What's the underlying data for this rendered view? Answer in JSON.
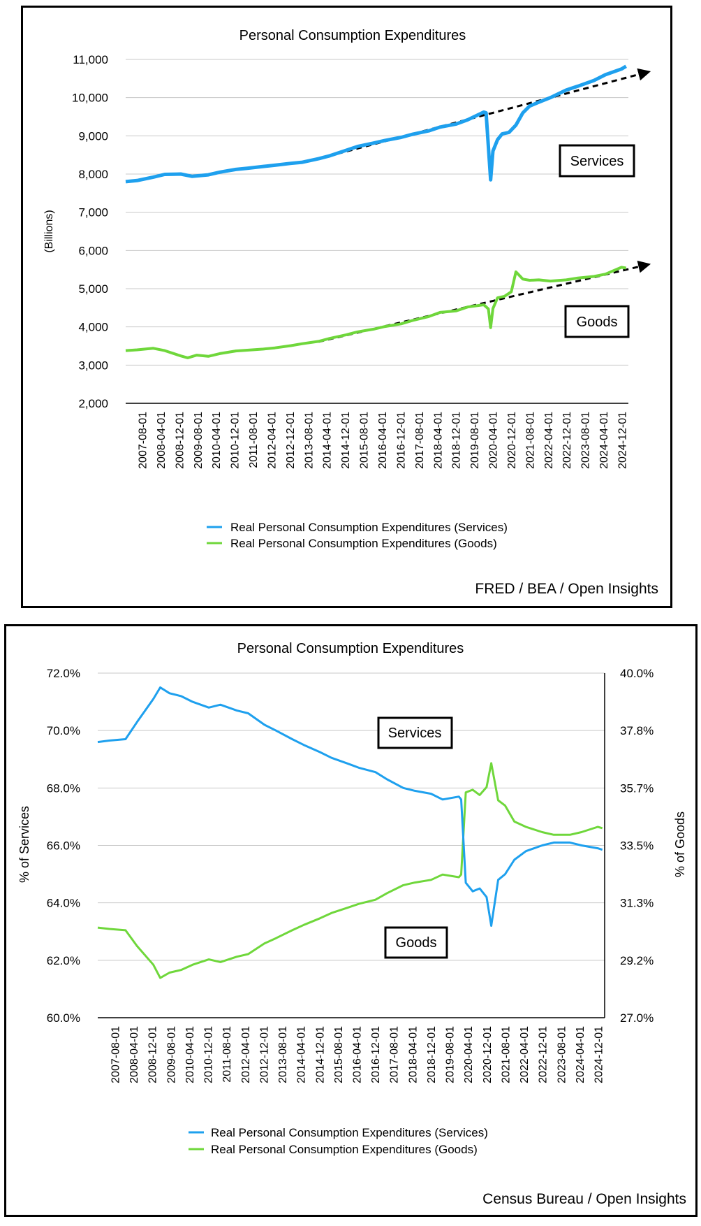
{
  "charts": [
    {
      "title": "Personal Consumption Expenditures",
      "ylabel": "(Billions)",
      "y_ticks": [
        "11,000",
        "10,000",
        "9,000",
        "8,000",
        "7,000",
        "6,000",
        "5,000",
        "4,000",
        "3,000",
        "2,000"
      ],
      "x_ticks": [
        "2007-08-01",
        "2008-04-01",
        "2008-12-01",
        "2009-08-01",
        "2010-04-01",
        "2010-12-01",
        "2011-08-01",
        "2012-04-01",
        "2012-12-01",
        "2013-08-01",
        "2014-04-01",
        "2014-12-01",
        "2015-08-01",
        "2016-04-01",
        "2016-12-01",
        "2017-08-01",
        "2018-04-01",
        "2018-12-01",
        "2019-08-01",
        "2020-04-01",
        "2020-12-01",
        "2021-08-01",
        "2022-04-01",
        "2022-12-01",
        "2023-08-01",
        "2024-04-01",
        "2024-12-01"
      ],
      "legend": [
        "Real Personal Consumption Expenditures (Services)",
        "Real Personal Consumption Expenditures (Goods)"
      ],
      "annotations": {
        "services": "Services",
        "goods": "Goods"
      },
      "source": "FRED / BEA / Open Insights"
    },
    {
      "title": "Personal Consumption Expenditures",
      "ylabel_left": "% of Services",
      "ylabel_right": "% of Goods",
      "y_ticks_left": [
        "72.0%",
        "70.0%",
        "68.0%",
        "66.0%",
        "64.0%",
        "62.0%",
        "60.0%"
      ],
      "y_ticks_right": [
        "40.0%",
        "37.8%",
        "35.7%",
        "33.5%",
        "31.3%",
        "29.2%",
        "27.0%"
      ],
      "x_ticks": [
        "2007-08-01",
        "2008-04-01",
        "2008-12-01",
        "2009-08-01",
        "2010-04-01",
        "2010-12-01",
        "2011-08-01",
        "2012-04-01",
        "2012-12-01",
        "2013-08-01",
        "2014-04-01",
        "2014-12-01",
        "2015-08-01",
        "2016-04-01",
        "2016-12-01",
        "2017-08-01",
        "2018-04-01",
        "2018-12-01",
        "2019-08-01",
        "2020-04-01",
        "2020-12-01",
        "2021-08-01",
        "2022-04-01",
        "2022-12-01",
        "2023-08-01",
        "2024-04-01",
        "2024-12-01"
      ],
      "legend": [
        "Real Personal Consumption Expenditures (Services)",
        "Real Personal Consumption Expenditures (Goods)"
      ],
      "annotations": {
        "services": "Services",
        "goods": "Goods"
      },
      "source": "Census Bureau / Open Insights"
    }
  ],
  "colors": {
    "services": "#1ea0ee",
    "goods": "#6fd73b",
    "grid": "#c8c8c8",
    "trend": "#000000"
  },
  "chart_data": [
    {
      "type": "line",
      "title": "Personal Consumption Expenditures",
      "ylabel": "(Billions)",
      "ylim": [
        2000,
        11000
      ],
      "x_range": [
        "2007-01",
        "2025-04"
      ],
      "series": [
        {
          "name": "Real Personal Consumption Expenditures (Services)",
          "points": [
            [
              "2007-01",
              7800
            ],
            [
              "2007-06",
              7830
            ],
            [
              "2008-01",
              7920
            ],
            [
              "2008-06",
              7990
            ],
            [
              "2009-01",
              8000
            ],
            [
              "2009-06",
              7940
            ],
            [
              "2010-01",
              7980
            ],
            [
              "2010-06",
              8050
            ],
            [
              "2011-01",
              8120
            ],
            [
              "2011-06",
              8150
            ],
            [
              "2012-01",
              8200
            ],
            [
              "2012-06",
              8230
            ],
            [
              "2013-01",
              8280
            ],
            [
              "2013-06",
              8310
            ],
            [
              "2014-01",
              8400
            ],
            [
              "2014-06",
              8480
            ],
            [
              "2015-01",
              8620
            ],
            [
              "2015-06",
              8720
            ],
            [
              "2016-01",
              8810
            ],
            [
              "2016-06",
              8880
            ],
            [
              "2017-01",
              8960
            ],
            [
              "2017-06",
              9040
            ],
            [
              "2018-01",
              9130
            ],
            [
              "2018-06",
              9230
            ],
            [
              "2019-01",
              9310
            ],
            [
              "2019-06",
              9420
            ],
            [
              "2020-01",
              9620
            ],
            [
              "2020-02",
              9600
            ],
            [
              "2020-04",
              7850
            ],
            [
              "2020-05",
              8600
            ],
            [
              "2020-07",
              8900
            ],
            [
              "2020-09",
              9050
            ],
            [
              "2020-12",
              9090
            ],
            [
              "2021-03",
              9280
            ],
            [
              "2021-06",
              9600
            ],
            [
              "2021-09",
              9780
            ],
            [
              "2022-01",
              9880
            ],
            [
              "2022-06",
              10000
            ],
            [
              "2023-01",
              10200
            ],
            [
              "2023-06",
              10300
            ],
            [
              "2024-01",
              10450
            ],
            [
              "2024-06",
              10600
            ],
            [
              "2025-01",
              10750
            ],
            [
              "2025-03",
              10820
            ]
          ]
        },
        {
          "name": "Real Personal Consumption Expenditures (Goods)",
          "points": [
            [
              "2007-01",
              3380
            ],
            [
              "2007-06",
              3400
            ],
            [
              "2008-01",
              3440
            ],
            [
              "2008-06",
              3380
            ],
            [
              "2009-01",
              3240
            ],
            [
              "2009-04",
              3190
            ],
            [
              "2009-08",
              3260
            ],
            [
              "2010-01",
              3230
            ],
            [
              "2010-06",
              3300
            ],
            [
              "2011-01",
              3370
            ],
            [
              "2011-06",
              3390
            ],
            [
              "2012-01",
              3420
            ],
            [
              "2012-06",
              3450
            ],
            [
              "2013-01",
              3510
            ],
            [
              "2013-06",
              3560
            ],
            [
              "2014-01",
              3620
            ],
            [
              "2014-06",
              3700
            ],
            [
              "2015-01",
              3790
            ],
            [
              "2015-06",
              3870
            ],
            [
              "2016-01",
              3940
            ],
            [
              "2016-06",
              4010
            ],
            [
              "2017-01",
              4080
            ],
            [
              "2017-06",
              4170
            ],
            [
              "2018-01",
              4270
            ],
            [
              "2018-06",
              4380
            ],
            [
              "2019-01",
              4420
            ],
            [
              "2019-06",
              4520
            ],
            [
              "2020-01",
              4580
            ],
            [
              "2020-03",
              4470
            ],
            [
              "2020-04",
              3980
            ],
            [
              "2020-05",
              4480
            ],
            [
              "2020-07",
              4760
            ],
            [
              "2020-10",
              4800
            ],
            [
              "2021-01",
              4920
            ],
            [
              "2021-03",
              5440
            ],
            [
              "2021-06",
              5250
            ],
            [
              "2021-09",
              5220
            ],
            [
              "2022-01",
              5230
            ],
            [
              "2022-06",
              5200
            ],
            [
              "2023-01",
              5230
            ],
            [
              "2023-06",
              5280
            ],
            [
              "2024-01",
              5320
            ],
            [
              "2024-06",
              5380
            ],
            [
              "2025-01",
              5560
            ],
            [
              "2025-03",
              5540
            ]
          ]
        }
      ],
      "trendlines": [
        {
          "name": "Services trend",
          "from": [
            "2014-01",
            8400
          ],
          "to": [
            "2025-06",
            10600
          ]
        },
        {
          "name": "Goods trend",
          "from": [
            "2014-01",
            3610
          ],
          "to": [
            "2025-06",
            5560
          ]
        }
      ]
    },
    {
      "type": "line",
      "title": "Personal Consumption Expenditures",
      "ylabel": "% of Services",
      "y2label": "% of Goods",
      "ylim": [
        60.0,
        72.0
      ],
      "y2lim": [
        27.0,
        40.0
      ],
      "x_range": [
        "2007-01",
        "2025-04"
      ],
      "series": [
        {
          "name": "Real Personal Consumption Expenditures (Services)",
          "axis": "left",
          "points": [
            [
              "2007-01",
              69.6
            ],
            [
              "2007-06",
              69.65
            ],
            [
              "2008-01",
              69.7
            ],
            [
              "2008-06",
              70.3
            ],
            [
              "2009-01",
              71.1
            ],
            [
              "2009-04",
              71.5
            ],
            [
              "2009-08",
              71.3
            ],
            [
              "2010-01",
              71.2
            ],
            [
              "2010-06",
              71.0
            ],
            [
              "2011-01",
              70.8
            ],
            [
              "2011-06",
              70.9
            ],
            [
              "2012-01",
              70.7
            ],
            [
              "2012-06",
              70.6
            ],
            [
              "2013-01",
              70.2
            ],
            [
              "2013-06",
              70.0
            ],
            [
              "2014-01",
              69.7
            ],
            [
              "2014-06",
              69.5
            ],
            [
              "2015-01",
              69.25
            ],
            [
              "2015-06",
              69.05
            ],
            [
              "2016-01",
              68.85
            ],
            [
              "2016-06",
              68.7
            ],
            [
              "2017-01",
              68.55
            ],
            [
              "2017-06",
              68.3
            ],
            [
              "2018-01",
              68.0
            ],
            [
              "2018-06",
              67.9
            ],
            [
              "2019-01",
              67.8
            ],
            [
              "2019-06",
              67.6
            ],
            [
              "2020-01",
              67.7
            ],
            [
              "2020-02",
              67.6
            ],
            [
              "2020-04",
              64.7
            ],
            [
              "2020-07",
              64.4
            ],
            [
              "2020-10",
              64.5
            ],
            [
              "2021-01",
              64.2
            ],
            [
              "2021-03",
              63.2
            ],
            [
              "2021-06",
              64.8
            ],
            [
              "2021-09",
              65.0
            ],
            [
              "2022-01",
              65.5
            ],
            [
              "2022-06",
              65.8
            ],
            [
              "2023-01",
              66.0
            ],
            [
              "2023-06",
              66.1
            ],
            [
              "2024-01",
              66.1
            ],
            [
              "2024-06",
              66.0
            ],
            [
              "2025-01",
              65.9
            ],
            [
              "2025-03",
              65.85
            ]
          ]
        },
        {
          "name": "Real Personal Consumption Expenditures (Goods)",
          "axis": "right",
          "points": [
            [
              "2007-01",
              30.4
            ],
            [
              "2007-06",
              30.35
            ],
            [
              "2008-01",
              30.3
            ],
            [
              "2008-06",
              29.7
            ],
            [
              "2009-01",
              29.0
            ],
            [
              "2009-04",
              28.5
            ],
            [
              "2009-08",
              28.7
            ],
            [
              "2010-01",
              28.8
            ],
            [
              "2010-06",
              29.0
            ],
            [
              "2011-01",
              29.2
            ],
            [
              "2011-06",
              29.1
            ],
            [
              "2012-01",
              29.3
            ],
            [
              "2012-06",
              29.4
            ],
            [
              "2013-01",
              29.8
            ],
            [
              "2013-06",
              30.0
            ],
            [
              "2014-01",
              30.3
            ],
            [
              "2014-06",
              30.5
            ],
            [
              "2015-01",
              30.75
            ],
            [
              "2015-06",
              30.95
            ],
            [
              "2016-01",
              31.15
            ],
            [
              "2016-06",
              31.3
            ],
            [
              "2017-01",
              31.45
            ],
            [
              "2017-06",
              31.7
            ],
            [
              "2018-01",
              32.0
            ],
            [
              "2018-06",
              32.1
            ],
            [
              "2019-01",
              32.2
            ],
            [
              "2019-06",
              32.4
            ],
            [
              "2020-01",
              32.3
            ],
            [
              "2020-02",
              32.4
            ],
            [
              "2020-04",
              35.5
            ],
            [
              "2020-07",
              35.6
            ],
            [
              "2020-10",
              35.4
            ],
            [
              "2021-01",
              35.7
            ],
            [
              "2021-03",
              36.6
            ],
            [
              "2021-06",
              35.2
            ],
            [
              "2021-09",
              35.0
            ],
            [
              "2022-01",
              34.4
            ],
            [
              "2022-06",
              34.2
            ],
            [
              "2023-01",
              34.0
            ],
            [
              "2023-06",
              33.9
            ],
            [
              "2024-01",
              33.9
            ],
            [
              "2024-06",
              34.0
            ],
            [
              "2025-01",
              34.2
            ],
            [
              "2025-03",
              34.15
            ]
          ]
        }
      ]
    }
  ]
}
